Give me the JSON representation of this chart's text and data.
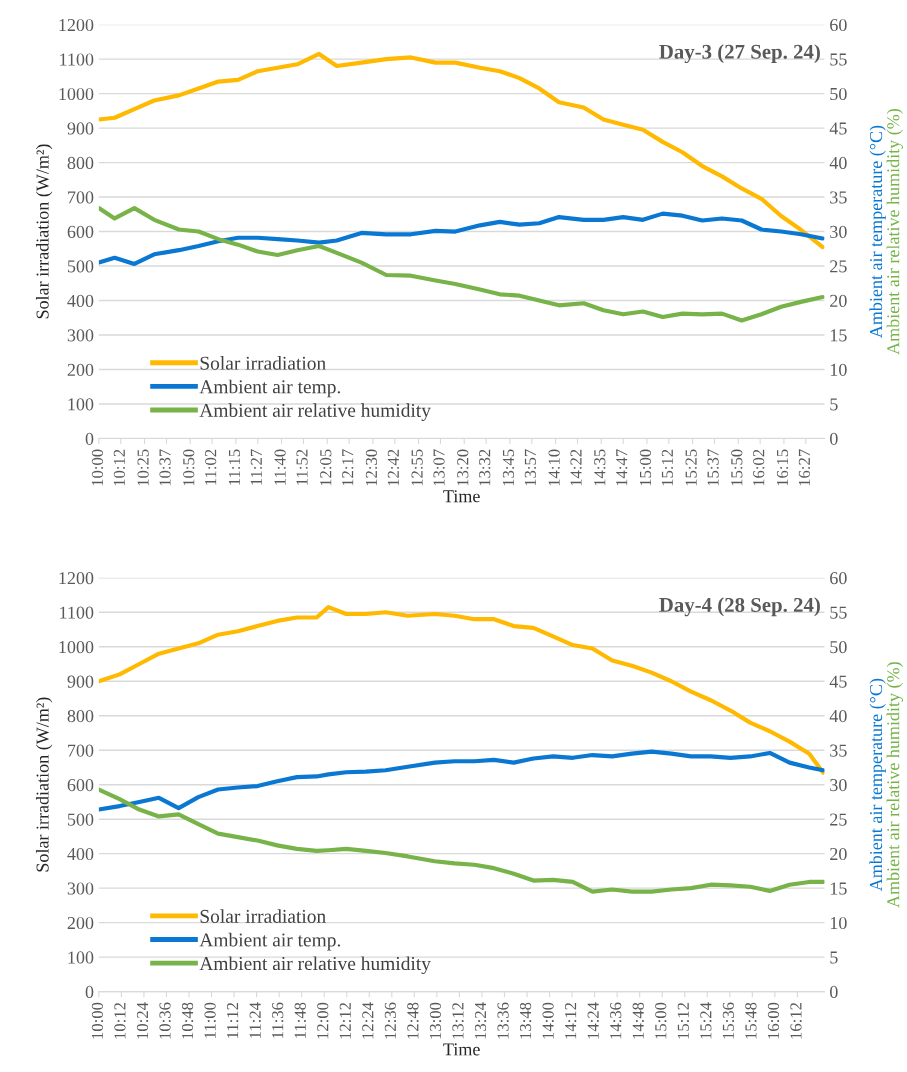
{
  "chart_data": [
    {
      "type": "line",
      "title": "Day-3 (27 Sep. 24)",
      "xlabel": "Time",
      "ylabel": "Solar irradiation (W/m²)",
      "y2label": "Ambient air temperature (°C)",
      "annotations": [
        "Ambient air relative humidity (%)"
      ],
      "x": [
        10.0,
        10.144,
        10.324,
        10.505,
        10.73,
        10.91,
        11.09,
        11.27,
        11.45,
        11.631,
        11.811,
        12.009,
        12.171,
        12.396,
        12.622,
        12.847,
        13.072,
        13.252,
        13.477,
        13.658,
        13.838,
        14.018,
        14.198,
        14.423,
        14.604,
        14.784,
        14.964,
        15.144,
        15.324,
        15.505,
        15.685,
        15.865,
        16.045,
        16.225,
        16.405,
        16.604
      ],
      "series": [
        {
          "name": "Solar irradiation",
          "color": "#ffb900",
          "values": [
            925,
            930,
            955,
            980,
            995,
            1015,
            1035,
            1040,
            1065,
            1075,
            1085,
            1115,
            1080,
            1090,
            1100,
            1105,
            1090,
            1090,
            1075,
            1065,
            1045,
            1015,
            975,
            960,
            925,
            910,
            895,
            860,
            830,
            790,
            760,
            725,
            695,
            645,
            605,
            555
          ]
        },
        {
          "name": "Ambient air temp.",
          "color": "#0a78d2",
          "axis": "y2",
          "values": [
            25.5,
            26.2,
            25.3,
            26.7,
            27.3,
            27.9,
            28.6,
            29.1,
            29.1,
            28.9,
            28.7,
            28.4,
            28.7,
            29.8,
            29.6,
            29.6,
            30.1,
            30,
            30.9,
            31.4,
            31,
            31.2,
            32.1,
            31.7,
            31.7,
            32.1,
            31.7,
            32.6,
            32.3,
            31.6,
            31.9,
            31.6,
            30.3,
            30,
            29.6,
            29
          ]
        },
        {
          "name": "Ambient air relative humidity",
          "color": "#77b348",
          "axis": "y2",
          "values": [
            33.4,
            31.9,
            33.4,
            31.7,
            30.3,
            30,
            28.9,
            28.1,
            27.1,
            26.6,
            27.3,
            27.9,
            26.9,
            25.5,
            23.7,
            23.6,
            22.9,
            22.4,
            21.6,
            20.9,
            20.7,
            20,
            19.3,
            19.6,
            18.6,
            18,
            18.4,
            17.6,
            18.1,
            18,
            18.1,
            17.1,
            18,
            19.1,
            19.8,
            20.5
          ]
        }
      ],
      "xlim": [
        10,
        16.62
      ],
      "xticks": [
        {
          "value": 10,
          "label": "10:00"
        },
        {
          "value": 10.2,
          "label": "10:12"
        },
        {
          "value": 10.4167,
          "label": "10:25"
        },
        {
          "value": 10.6167,
          "label": "10:37"
        },
        {
          "value": 10.8333,
          "label": "10:50"
        },
        {
          "value": 11.0333,
          "label": "11:02"
        },
        {
          "value": 11.25,
          "label": "11:15"
        },
        {
          "value": 11.45,
          "label": "11:27"
        },
        {
          "value": 11.6667,
          "label": "11:40"
        },
        {
          "value": 11.8667,
          "label": "11:52"
        },
        {
          "value": 12.0833,
          "label": "12:05"
        },
        {
          "value": 12.2833,
          "label": "12:17"
        },
        {
          "value": 12.5,
          "label": "12:30"
        },
        {
          "value": 12.7,
          "label": "12:42"
        },
        {
          "value": 12.9167,
          "label": "12:55"
        },
        {
          "value": 13.1167,
          "label": "13:07"
        },
        {
          "value": 13.3333,
          "label": "13:20"
        },
        {
          "value": 13.5333,
          "label": "13:32"
        },
        {
          "value": 13.75,
          "label": "13:45"
        },
        {
          "value": 13.95,
          "label": "13:57"
        },
        {
          "value": 14.1667,
          "label": "14:10"
        },
        {
          "value": 14.3667,
          "label": "14:22"
        },
        {
          "value": 14.5833,
          "label": "14:35"
        },
        {
          "value": 14.7833,
          "label": "14:47"
        },
        {
          "value": 15,
          "label": "15:00"
        },
        {
          "value": 15.2,
          "label": "15:12"
        },
        {
          "value": 15.4167,
          "label": "15:25"
        },
        {
          "value": 15.6167,
          "label": "15:37"
        },
        {
          "value": 15.8333,
          "label": "15:50"
        },
        {
          "value": 16.0333,
          "label": "16:02"
        },
        {
          "value": 16.25,
          "label": "16:15"
        },
        {
          "value": 16.45,
          "label": "16:27"
        }
      ],
      "ylim": [
        0,
        1200
      ],
      "yticks": [
        0,
        100,
        200,
        300,
        400,
        500,
        600,
        700,
        800,
        900,
        1000,
        1100,
        1200
      ],
      "y2lim": [
        0,
        60
      ],
      "y2ticks": [
        0,
        5,
        10,
        15,
        20,
        25,
        30,
        35,
        40,
        45,
        50,
        55,
        60
      ],
      "grid": "y",
      "legend": "bottom left",
      "marker": "none",
      "line_style": "solid"
    },
    {
      "type": "line",
      "title": "Day-4 (28 Sep. 24)",
      "xlabel": "Time",
      "ylabel": "Solar irradiation (W/m²)",
      "y2label": "Ambient air temperature (°C)",
      "annotations": [
        "Ambient air relative humidity (%)"
      ],
      "x": [
        10.0,
        10.184,
        10.359,
        10.533,
        10.708,
        10.883,
        11.058,
        11.233,
        11.408,
        11.583,
        11.758,
        11.933,
        12.038,
        12.195,
        12.37,
        12.545,
        12.742,
        12.982,
        13.157,
        13.332,
        13.507,
        13.682,
        13.857,
        14.031,
        14.206,
        14.381,
        14.556,
        14.731,
        14.906,
        15.081,
        15.256,
        15.431,
        15.606,
        15.78,
        15.955,
        16.13,
        16.305,
        16.428
      ],
      "series": [
        {
          "name": "Solar irradiation",
          "color": "#ffb900",
          "values": [
            900,
            920,
            950,
            980,
            995,
            1010,
            1035,
            1045,
            1060,
            1075,
            1085,
            1085,
            1115,
            1095,
            1095,
            1100,
            1090,
            1095,
            1090,
            1080,
            1080,
            1060,
            1055,
            1030,
            1005,
            995,
            960,
            945,
            925,
            900,
            870,
            845,
            815,
            780,
            755,
            725,
            690,
            635
          ]
        },
        {
          "name": "Ambient air temp.",
          "color": "#0a78d2",
          "axis": "y2",
          "values": [
            26.4,
            26.9,
            27.5,
            28.1,
            26.6,
            28.2,
            29.3,
            29.6,
            29.8,
            30.5,
            31.1,
            31.2,
            31.5,
            31.8,
            31.9,
            32.1,
            32.6,
            33.2,
            33.4,
            33.4,
            33.6,
            33.2,
            33.8,
            34.1,
            33.9,
            34.3,
            34.1,
            34.5,
            34.8,
            34.5,
            34.1,
            34.1,
            33.9,
            34.1,
            34.6,
            33.2,
            32.5,
            32.1
          ]
        },
        {
          "name": "Ambient air relative humidity",
          "color": "#77b348",
          "axis": "y2",
          "values": [
            29.3,
            27.9,
            26.4,
            25.4,
            25.7,
            24.3,
            22.9,
            22.4,
            21.9,
            21.2,
            20.7,
            20.4,
            20.5,
            20.7,
            20.4,
            20.1,
            19.6,
            18.9,
            18.6,
            18.4,
            17.9,
            17.1,
            16.1,
            16.2,
            15.9,
            14.5,
            14.8,
            14.5,
            14.5,
            14.8,
            15.0,
            15.5,
            15.4,
            15.2,
            14.6,
            15.5,
            15.9,
            15.9
          ]
        }
      ],
      "xlim": [
        10,
        16.44
      ],
      "xticks": [
        {
          "value": 10,
          "label": "10:00"
        },
        {
          "value": 10.2,
          "label": "10:12"
        },
        {
          "value": 10.4,
          "label": "10:24"
        },
        {
          "value": 10.6,
          "label": "10:36"
        },
        {
          "value": 10.8,
          "label": "10:48"
        },
        {
          "value": 11,
          "label": "11:00"
        },
        {
          "value": 11.2,
          "label": "11:12"
        },
        {
          "value": 11.4,
          "label": "11:24"
        },
        {
          "value": 11.6,
          "label": "11:36"
        },
        {
          "value": 11.8,
          "label": "11:48"
        },
        {
          "value": 12,
          "label": "12:00"
        },
        {
          "value": 12.2,
          "label": "12:12"
        },
        {
          "value": 12.4,
          "label": "12:24"
        },
        {
          "value": 12.6,
          "label": "12:36"
        },
        {
          "value": 12.8,
          "label": "12:48"
        },
        {
          "value": 13,
          "label": "13:00"
        },
        {
          "value": 13.2,
          "label": "13:12"
        },
        {
          "value": 13.4,
          "label": "13:24"
        },
        {
          "value": 13.6,
          "label": "13:36"
        },
        {
          "value": 13.8,
          "label": "13:48"
        },
        {
          "value": 14,
          "label": "14:00"
        },
        {
          "value": 14.2,
          "label": "14:12"
        },
        {
          "value": 14.4,
          "label": "14:24"
        },
        {
          "value": 14.6,
          "label": "14:36"
        },
        {
          "value": 14.8,
          "label": "14:48"
        },
        {
          "value": 15,
          "label": "15:00"
        },
        {
          "value": 15.2,
          "label": "15:12"
        },
        {
          "value": 15.4,
          "label": "15:24"
        },
        {
          "value": 15.6,
          "label": "15:36"
        },
        {
          "value": 15.8,
          "label": "15:48"
        },
        {
          "value": 16,
          "label": "16:00"
        },
        {
          "value": 16.2,
          "label": "16:12"
        }
      ],
      "ylim": [
        0,
        1200
      ],
      "yticks": [
        0,
        100,
        200,
        300,
        400,
        500,
        600,
        700,
        800,
        900,
        1000,
        1100,
        1200
      ],
      "y2lim": [
        0,
        60
      ],
      "y2ticks": [
        0,
        5,
        10,
        15,
        20,
        25,
        30,
        35,
        40,
        45,
        50,
        55,
        60
      ],
      "grid": "y",
      "legend": "bottom left",
      "marker": "none",
      "line_style": "solid"
    }
  ]
}
